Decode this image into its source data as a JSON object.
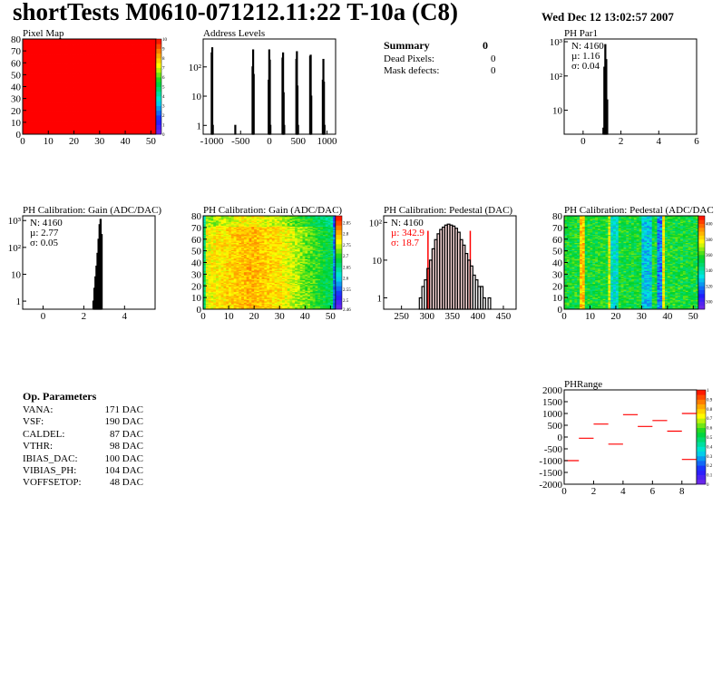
{
  "header": {
    "title": "shortTests M0610-071212.11:22 T-10a (C8)",
    "date": "Wed Dec 12 13:02:57 2007"
  },
  "summary": {
    "title": "Summary",
    "value": "0",
    "rows": [
      {
        "label": "Dead Pixels:",
        "value": "0"
      },
      {
        "label": "Mask defects:",
        "value": "0"
      }
    ]
  },
  "op_params": {
    "title": "Op. Parameters",
    "rows": [
      {
        "label": "VANA:",
        "value": "171 DAC"
      },
      {
        "label": "VSF:",
        "value": "190 DAC"
      },
      {
        "label": "CALDEL:",
        "value": "87 DAC"
      },
      {
        "label": "VTHR:",
        "value": "98 DAC"
      },
      {
        "label": "IBIAS_DAC:",
        "value": "100 DAC"
      },
      {
        "label": "VIBIAS_PH:",
        "value": "104 DAC"
      },
      {
        "label": "VOFFSETOP:",
        "value": "48 DAC"
      }
    ]
  },
  "chart_data": [
    {
      "id": "pixelmap",
      "type": "heatmap",
      "title": "Pixel Map",
      "xlim": [
        0,
        52
      ],
      "ylim": [
        0,
        80
      ],
      "xticks": [
        0,
        10,
        20,
        30,
        40,
        50
      ],
      "yticks": [
        0,
        10,
        20,
        30,
        40,
        50,
        60,
        70,
        80
      ],
      "zlim": [
        0,
        10
      ],
      "zticks": [
        0,
        1,
        2,
        3,
        4,
        5,
        6,
        7,
        8,
        9,
        10
      ],
      "uniform_value": 10,
      "pattern": "uniform"
    },
    {
      "id": "addr",
      "type": "bar",
      "title": "Address Levels",
      "xlim": [
        -1150,
        1150
      ],
      "ylim": [
        0.5,
        900
      ],
      "log_y": true,
      "xticks": [
        -1000,
        -500,
        0,
        500,
        1000
      ],
      "yticks": [
        {
          "v": 1,
          "l": "1"
        },
        {
          "v": 10,
          "l": "10"
        },
        {
          "v": 100,
          "l": "10²"
        }
      ],
      "binw": 10,
      "x": [
        -1010,
        -1000,
        -990,
        -300,
        -290,
        -280,
        -20,
        -10,
        0,
        10,
        220,
        230,
        240,
        250,
        460,
        470,
        480,
        490,
        700,
        710,
        720,
        920,
        930,
        940,
        950,
        -600
      ],
      "values": [
        300,
        450,
        1,
        100,
        380,
        55,
        35,
        380,
        170,
        1,
        200,
        300,
        13,
        1,
        180,
        330,
        22,
        1,
        230,
        250,
        10,
        35,
        180,
        30,
        1,
        1
      ]
    },
    {
      "id": "phpar1",
      "type": "bar",
      "title": "PH Par1",
      "xlim": [
        -1,
        6
      ],
      "ylim": [
        2,
        1200
      ],
      "log_y": true,
      "xticks": [
        0,
        2,
        4,
        6
      ],
      "yticks": [
        {
          "v": 10,
          "l": "10"
        },
        {
          "v": 100,
          "l": "10²"
        },
        {
          "v": 1000,
          "l": "10³"
        }
      ],
      "binw": 0.05,
      "x": [
        1.05,
        1.1,
        1.15,
        1.2,
        1.25
      ],
      "values": [
        3,
        180,
        820,
        300,
        20
      ],
      "stats": [
        "N: 4160",
        "µ: 1.16",
        "σ: 0.04"
      ]
    },
    {
      "id": "gainhist",
      "type": "bar",
      "title": "PH Calibration: Gain (ADC/DAC)",
      "xlim": [
        -1,
        5.5
      ],
      "ylim": [
        0.5,
        1500
      ],
      "log_y": true,
      "xticks": [
        0,
        2,
        4
      ],
      "yticks": [
        {
          "v": 1,
          "l": "1"
        },
        {
          "v": 10,
          "l": "10"
        },
        {
          "v": 100,
          "l": "10²"
        },
        {
          "v": 1000,
          "l": "10³"
        }
      ],
      "binw": 0.05,
      "x": [
        2.45,
        2.5,
        2.55,
        2.6,
        2.65,
        2.7,
        2.75,
        2.8,
        2.85
      ],
      "values": [
        1,
        3,
        8,
        20,
        60,
        200,
        700,
        1100,
        300
      ],
      "stats": [
        "N: 4160",
        "µ: 2.77",
        "σ: 0.05"
      ]
    },
    {
      "id": "gainmap",
      "type": "heatmap",
      "title": "PH Calibration: Gain (ADC/DAC)",
      "xlim": [
        0,
        52
      ],
      "ylim": [
        0,
        80
      ],
      "xticks": [
        0,
        10,
        20,
        30,
        40,
        50
      ],
      "yticks": [
        0,
        10,
        20,
        30,
        40,
        50,
        60,
        70,
        80
      ],
      "zlim": [
        2.46,
        2.88
      ],
      "zticks": [
        2.46,
        2.5,
        2.55,
        2.6,
        2.65,
        2.7,
        2.75,
        2.8,
        2.85
      ],
      "pattern": "gain"
    },
    {
      "id": "pedhist",
      "type": "bar",
      "title": "PH Calibration: Pedestal (DAC)",
      "xlim": [
        215,
        475
      ],
      "ylim": [
        0.5,
        150
      ],
      "log_y": true,
      "xticks": [
        250,
        300,
        350,
        400,
        450
      ],
      "yticks": [
        {
          "v": 1,
          "l": "1"
        },
        {
          "v": 10,
          "l": "10"
        },
        {
          "v": 100,
          "l": "10²"
        }
      ],
      "binw": 5,
      "x": [
        285,
        290,
        295,
        300,
        305,
        310,
        315,
        320,
        325,
        330,
        335,
        340,
        345,
        350,
        355,
        360,
        365,
        370,
        375,
        380,
        385,
        390,
        395,
        400,
        405,
        410,
        420
      ],
      "values": [
        1,
        2,
        3,
        6,
        10,
        20,
        35,
        50,
        65,
        75,
        85,
        90,
        85,
        80,
        70,
        55,
        35,
        25,
        15,
        10,
        7,
        4,
        3,
        2,
        2,
        1,
        1
      ],
      "fit_range": [
        302,
        385
      ],
      "stats": [
        "N: 4160",
        "µ: 342.9",
        "σ: 18.7"
      ]
    },
    {
      "id": "pedmap",
      "type": "heatmap",
      "title": "PH Calibration: Pedestal (ADC/DAC",
      "xlim": [
        0,
        52
      ],
      "ylim": [
        0,
        80
      ],
      "xticks": [
        0,
        10,
        20,
        30,
        40,
        50
      ],
      "yticks": [
        0,
        10,
        20,
        30,
        40,
        50,
        60,
        70,
        80
      ],
      "zlim": [
        290,
        410
      ],
      "zticks": [
        300,
        320,
        340,
        360,
        380,
        400
      ],
      "pattern": "pedestal"
    },
    {
      "id": "phrange",
      "type": "line",
      "title": "PHRange",
      "xlim": [
        0,
        9
      ],
      "ylim": [
        -2000,
        2000
      ],
      "xticks": [
        0,
        2,
        4,
        6,
        8
      ],
      "yticks": [
        -2000,
        -1500,
        -1000,
        -500,
        0,
        500,
        1000,
        1500,
        2000
      ],
      "zlim": [
        0,
        1
      ],
      "zticks": [
        0,
        0.1,
        0.2,
        0.3,
        0.4,
        0.5,
        0.6,
        0.7,
        0.8,
        0.9,
        1
      ],
      "segments": [
        [
          0,
          -1000
        ],
        [
          1,
          -50
        ],
        [
          2,
          550
        ],
        [
          3,
          -300
        ],
        [
          4,
          950
        ],
        [
          5,
          450
        ],
        [
          6,
          700
        ],
        [
          7,
          250
        ],
        [
          8,
          1000
        ],
        [
          8,
          -950
        ]
      ],
      "color": "#ff0000"
    }
  ],
  "colors": {
    "accent": "#ff0000",
    "fill": "#ff0000"
  }
}
